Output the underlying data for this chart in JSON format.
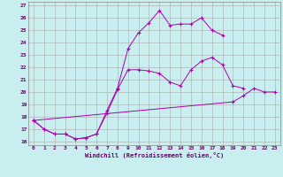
{
  "xlabel": "Windchill (Refroidissement éolien,°C)",
  "bg_color": "#c8eef0",
  "line_color": "#aa00aa",
  "grid_color": "#aaaaaa",
  "xlim": [
    -0.5,
    23.5
  ],
  "ylim": [
    15.7,
    27.3
  ],
  "xticks": [
    0,
    1,
    2,
    3,
    4,
    5,
    6,
    7,
    8,
    9,
    10,
    11,
    12,
    13,
    14,
    15,
    16,
    17,
    18,
    19,
    20,
    21,
    22,
    23
  ],
  "yticks": [
    16,
    17,
    18,
    19,
    20,
    21,
    22,
    23,
    24,
    25,
    26,
    27
  ],
  "lines": [
    {
      "x": [
        0,
        1,
        2,
        3,
        4,
        5,
        6,
        7,
        8,
        9,
        10,
        11,
        12,
        13,
        14,
        15,
        16,
        17,
        18
      ],
      "y": [
        17.7,
        17.0,
        16.6,
        16.6,
        16.2,
        16.3,
        16.6,
        18.5,
        20.3,
        23.5,
        24.8,
        25.6,
        26.6,
        25.4,
        25.5,
        25.5,
        26.0,
        25.0,
        24.6
      ]
    },
    {
      "x": [
        0,
        1,
        2,
        3,
        4,
        5,
        6,
        7,
        8,
        9,
        10,
        11,
        12,
        13,
        14,
        15,
        16,
        17,
        18,
        19,
        20
      ],
      "y": [
        17.7,
        17.0,
        16.6,
        16.6,
        16.2,
        16.3,
        16.6,
        18.3,
        20.2,
        21.8,
        21.8,
        21.7,
        21.5,
        20.8,
        20.5,
        21.8,
        22.5,
        22.8,
        22.2,
        20.5,
        20.3
      ]
    },
    {
      "x": [
        0,
        19,
        20,
        21,
        22,
        23
      ],
      "y": [
        17.7,
        19.2,
        19.7,
        20.3,
        20.0,
        20.0
      ]
    }
  ]
}
